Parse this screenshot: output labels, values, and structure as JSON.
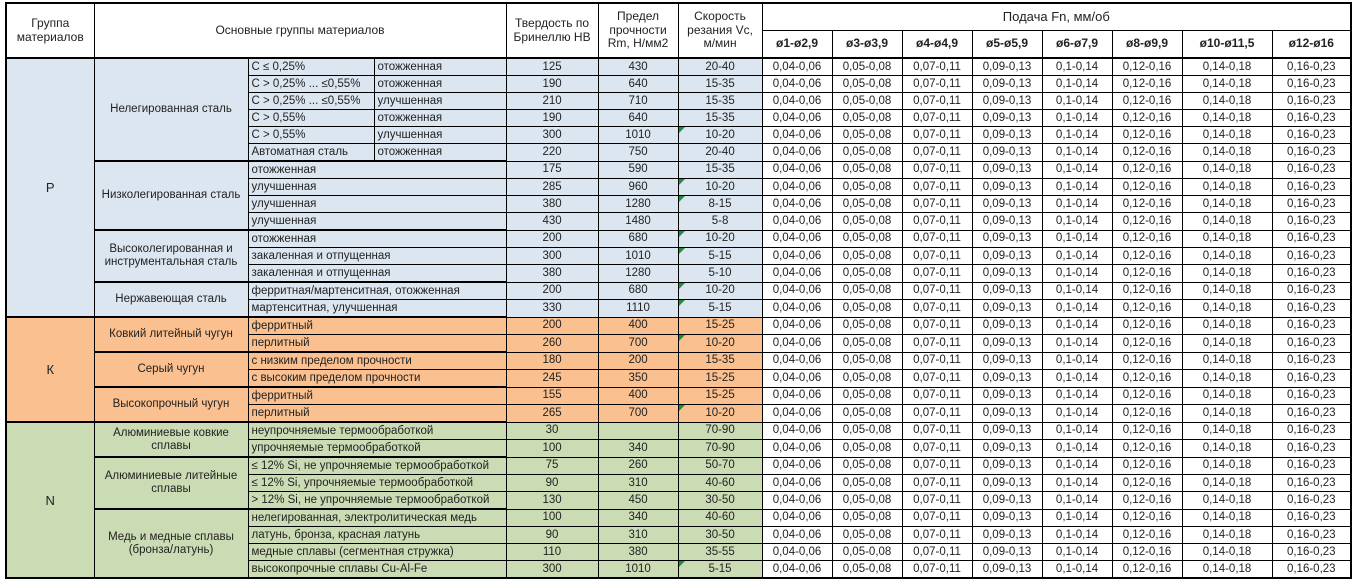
{
  "header": {
    "col_group": "Группа материалов",
    "col_main": "Основные группы материалов",
    "col_hb": "Твердость по Бринеллю HB",
    "col_rm": "Предел прочности Rm, Н/мм2",
    "col_vc": "Скорость резания Vc, м/мин",
    "feed_title": "Подача Fn, мм/об",
    "feed_cols": [
      "ø1-ø2,9",
      "ø3-ø3,9",
      "ø4-ø4,9",
      "ø5-ø5,9",
      "ø6-ø7,9",
      "ø8-ø9,9",
      "ø10-ø11,5",
      "ø12-ø16"
    ]
  },
  "colors": {
    "error_flag": "#1e8f3e",
    "border": "#000000",
    "p_group": "#dce6f1",
    "k_group": "#fac08f",
    "n_group": "#cbdcb4"
  },
  "feed_values": [
    "0,04-0,06",
    "0,05-0,08",
    "0,07-0,11",
    "0,09-0,13",
    "0,1-0,14",
    "0,12-0,16",
    "0,14-0,18",
    "0,16-0,23"
  ],
  "groups": [
    {
      "code": "P",
      "color": "#dce6f1",
      "subgroups": [
        {
          "name": "Нелегированная сталь",
          "rows": [
            {
              "c1": "С ≤ 0,25%",
              "c2": "отожженная",
              "hb": "125",
              "rm": "430",
              "vc": "20-40",
              "flag": false
            },
            {
              "c1": "С > 0,25% ... ≤0,55%",
              "c2": "отожженная",
              "hb": "190",
              "rm": "640",
              "vc": "15-35",
              "flag": false
            },
            {
              "c1": "С > 0,25% ... ≤0,55%",
              "c2": "улучшенная",
              "hb": "210",
              "rm": "710",
              "vc": "15-35",
              "flag": false
            },
            {
              "c1": "С > 0,55%",
              "c2": "отожженная",
              "hb": "190",
              "rm": "640",
              "vc": "15-35",
              "flag": false
            },
            {
              "c1": "С > 0,55%",
              "c2": "улучшенная",
              "hb": "300",
              "rm": "1010",
              "vc": "10-20",
              "flag": true
            },
            {
              "c1": "Автоматная сталь",
              "c2": "отожженная",
              "hb": "220",
              "rm": "750",
              "vc": "20-40",
              "flag": false
            }
          ]
        },
        {
          "name": "Низколегированная сталь",
          "rows": [
            {
              "desc": "отожженная",
              "hb": "175",
              "rm": "590",
              "vc": "15-35",
              "flag": false
            },
            {
              "desc": "улучшенная",
              "hb": "285",
              "rm": "960",
              "vc": "10-20",
              "flag": true
            },
            {
              "desc": "улучшенная",
              "hb": "380",
              "rm": "1280",
              "vc": "8-15",
              "flag": true
            },
            {
              "desc": "улучшенная",
              "hb": "430",
              "rm": "1480",
              "vc": "5-8",
              "flag": false
            }
          ]
        },
        {
          "name": "Высоколегированная и инструментальная сталь",
          "rows": [
            {
              "desc": "отожженная",
              "hb": "200",
              "rm": "680",
              "vc": "10-20",
              "flag": true
            },
            {
              "desc": "закаленная и отпущенная",
              "hb": "300",
              "rm": "1010",
              "vc": "5-15",
              "flag": true
            },
            {
              "desc": "закаленная и отпущенная",
              "hb": "380",
              "rm": "1280",
              "vc": "5-10",
              "flag": false
            }
          ]
        },
        {
          "name": "Нержавеющая сталь",
          "rows": [
            {
              "desc": "ферритная/мартенситная, отожженная",
              "hb": "200",
              "rm": "680",
              "vc": "10-20",
              "flag": true
            },
            {
              "desc": "мартенситная, улучшенная",
              "hb": "330",
              "rm": "1110",
              "vc": "5-15",
              "flag": true
            }
          ]
        }
      ]
    },
    {
      "code": "К",
      "color": "#fac08f",
      "subgroups": [
        {
          "name": "Ковкий литейный чугун",
          "rows": [
            {
              "desc": "ферритный",
              "hb": "200",
              "rm": "400",
              "vc": "15-25",
              "flag": false
            },
            {
              "desc": "перлитный",
              "hb": "260",
              "rm": "700",
              "vc": "10-20",
              "flag": true
            }
          ]
        },
        {
          "name": "Серый чугун",
          "rows": [
            {
              "desc": "с низким пределом прочности",
              "hb": "180",
              "rm": "200",
              "vc": "15-35",
              "flag": false
            },
            {
              "desc": "с высоким пределом прочности",
              "hb": "245",
              "rm": "350",
              "vc": "15-25",
              "flag": false
            }
          ]
        },
        {
          "name": "Высокопрочный чугун",
          "rows": [
            {
              "desc": "ферритный",
              "hb": "155",
              "rm": "400",
              "vc": "15-25",
              "flag": false
            },
            {
              "desc": "перлитный",
              "hb": "265",
              "rm": "700",
              "vc": "10-20",
              "flag": true
            }
          ]
        }
      ]
    },
    {
      "code": "N",
      "color": "#cbdcb4",
      "subgroups": [
        {
          "name": "Алюминиевые ковкие сплавы",
          "rows": [
            {
              "desc": "неупрочняемые термообработкой",
              "hb": "30",
              "rm": "",
              "vc": "70-90",
              "flag": false
            },
            {
              "desc": "упрочняемые термообработкой",
              "hb": "100",
              "rm": "340",
              "vc": "70-90",
              "flag": false
            }
          ]
        },
        {
          "name": "Алюминиевые литейные сплавы",
          "rows": [
            {
              "desc": "≤ 12% Si, не упрочняемые термообработкой",
              "hb": "75",
              "rm": "260",
              "vc": "50-70",
              "flag": false
            },
            {
              "desc": "≤ 12% Si, упрочняемые термообработкой",
              "hb": "90",
              "rm": "310",
              "vc": "40-60",
              "flag": false
            },
            {
              "desc": "> 12% Si, не упрочняемые термообработкой",
              "hb": "130",
              "rm": "450",
              "vc": "30-50",
              "flag": false
            }
          ]
        },
        {
          "name": "Медь и медные сплавы (бронза/латунь)",
          "rows": [
            {
              "desc": "нелегированная, электролитическая медь",
              "hb": "100",
              "rm": "340",
              "vc": "40-60",
              "flag": false
            },
            {
              "desc": "латунь, бронза, красная латунь",
              "hb": "90",
              "rm": "310",
              "vc": "30-50",
              "flag": false
            },
            {
              "desc": "медные сплавы (сегментная стружка)",
              "hb": "110",
              "rm": "380",
              "vc": "35-55",
              "flag": false
            },
            {
              "desc": "высокопрочные сплавы Cu-Al-Fe",
              "hb": "300",
              "rm": "1010",
              "vc": "5-15",
              "flag": true
            }
          ]
        }
      ]
    }
  ]
}
